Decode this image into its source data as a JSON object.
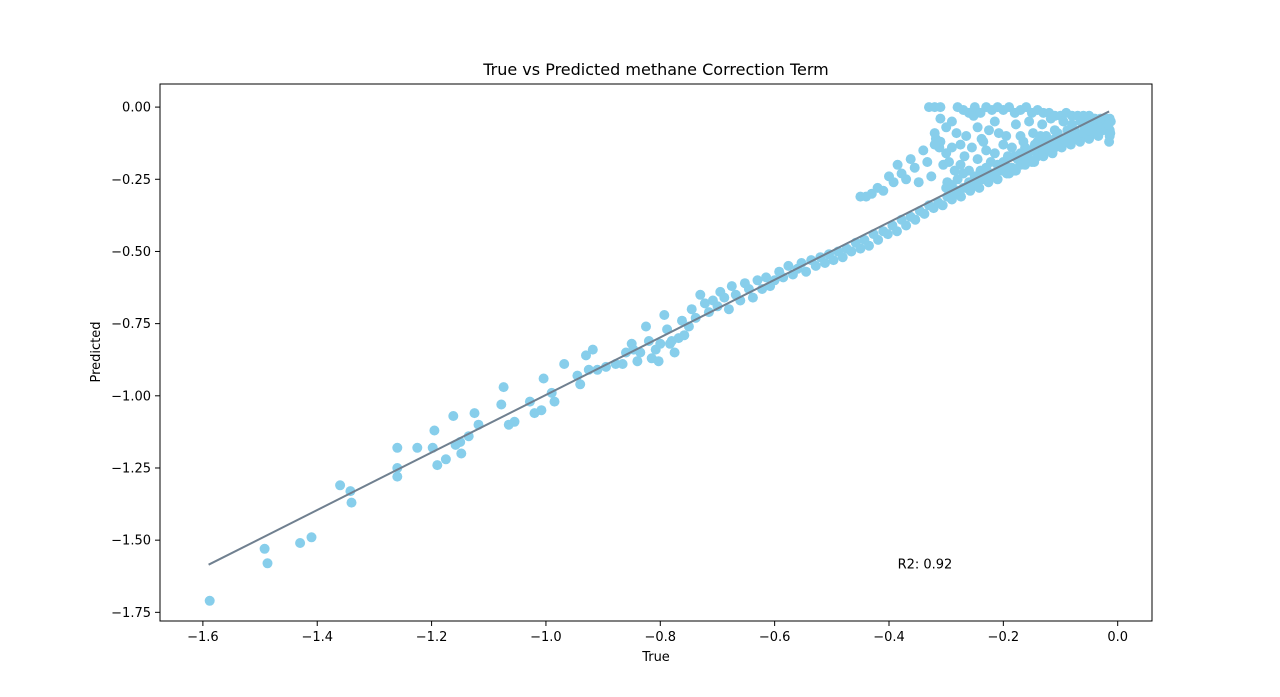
{
  "chart_data": {
    "type": "scatter",
    "title": "True vs Predicted methane Correction Term",
    "xlabel": "True",
    "ylabel": "Predicted",
    "xlim": [
      -1.675,
      0.06
    ],
    "ylim": [
      -1.78,
      0.08
    ],
    "xticks": [
      {
        "value": -1.6,
        "label": "−1.6"
      },
      {
        "value": -1.4,
        "label": "−1.4"
      },
      {
        "value": -1.2,
        "label": "−1.2"
      },
      {
        "value": -1.0,
        "label": "−1.0"
      },
      {
        "value": -0.8,
        "label": "−0.8"
      },
      {
        "value": -0.6,
        "label": "−0.6"
      },
      {
        "value": -0.4,
        "label": "−0.4"
      },
      {
        "value": -0.2,
        "label": "−0.2"
      },
      {
        "value": 0.0,
        "label": "0.0"
      }
    ],
    "yticks": [
      {
        "value": 0.0,
        "label": "0.00"
      },
      {
        "value": -0.25,
        "label": "−0.25"
      },
      {
        "value": -0.5,
        "label": "−0.50"
      },
      {
        "value": -0.75,
        "label": "−0.75"
      },
      {
        "value": -1.0,
        "label": "−1.00"
      },
      {
        "value": -1.25,
        "label": "−1.25"
      },
      {
        "value": -1.5,
        "label": "−1.50"
      },
      {
        "value": -1.75,
        "label": "−1.75"
      }
    ],
    "grid": false,
    "annotation": {
      "text": "R2: 0.92",
      "x": -0.385,
      "y": -1.58
    },
    "fit_line": {
      "x": [
        -1.59,
        -0.015
      ],
      "y": [
        -1.585,
        -0.015
      ],
      "color": "#708090"
    },
    "point_color": "#87ceeb",
    "points": [
      [
        -1.588,
        -1.71
      ],
      [
        -1.492,
        -1.53
      ],
      [
        -1.487,
        -1.58
      ],
      [
        -1.43,
        -1.51
      ],
      [
        -1.41,
        -1.49
      ],
      [
        -1.36,
        -1.31
      ],
      [
        -1.342,
        -1.33
      ],
      [
        -1.34,
        -1.37
      ],
      [
        -1.26,
        -1.18
      ],
      [
        -1.26,
        -1.25
      ],
      [
        -1.26,
        -1.28
      ],
      [
        -1.225,
        -1.18
      ],
      [
        -1.198,
        -1.18
      ],
      [
        -1.195,
        -1.12
      ],
      [
        -1.19,
        -1.24
      ],
      [
        -1.175,
        -1.22
      ],
      [
        -1.162,
        -1.07
      ],
      [
        -1.158,
        -1.17
      ],
      [
        -1.15,
        -1.16
      ],
      [
        -1.148,
        -1.2
      ],
      [
        -1.135,
        -1.14
      ],
      [
        -1.125,
        -1.06
      ],
      [
        -1.118,
        -1.1
      ],
      [
        -1.078,
        -1.03
      ],
      [
        -1.074,
        -0.97
      ],
      [
        -1.065,
        -1.1
      ],
      [
        -1.055,
        -1.09
      ],
      [
        -1.028,
        -1.02
      ],
      [
        -1.02,
        -1.06
      ],
      [
        -1.008,
        -1.05
      ],
      [
        -1.004,
        -0.94
      ],
      [
        -0.99,
        -0.99
      ],
      [
        -0.985,
        -1.02
      ],
      [
        -0.968,
        -0.89
      ],
      [
        -0.945,
        -0.93
      ],
      [
        -0.94,
        -0.96
      ],
      [
        -0.93,
        -0.86
      ],
      [
        -0.925,
        -0.91
      ],
      [
        -0.918,
        -0.84
      ],
      [
        -0.91,
        -0.91
      ],
      [
        -0.895,
        -0.9
      ],
      [
        -0.878,
        -0.89
      ],
      [
        -0.866,
        -0.89
      ],
      [
        -0.86,
        -0.85
      ],
      [
        -0.85,
        -0.82
      ],
      [
        -0.847,
        -0.84
      ],
      [
        -0.84,
        -0.88
      ],
      [
        -0.835,
        -0.85
      ],
      [
        -0.825,
        -0.76
      ],
      [
        -0.82,
        -0.81
      ],
      [
        -0.815,
        -0.87
      ],
      [
        -0.808,
        -0.84
      ],
      [
        -0.803,
        -0.88
      ],
      [
        -0.8,
        -0.82
      ],
      [
        -0.793,
        -0.72
      ],
      [
        -0.788,
        -0.77
      ],
      [
        -0.783,
        -0.82
      ],
      [
        -0.78,
        -0.81
      ],
      [
        -0.775,
        -0.85
      ],
      [
        -0.768,
        -0.8
      ],
      [
        -0.762,
        -0.74
      ],
      [
        -0.758,
        -0.79
      ],
      [
        -0.75,
        -0.76
      ],
      [
        -0.745,
        -0.7
      ],
      [
        -0.738,
        -0.73
      ],
      [
        -0.73,
        -0.65
      ],
      [
        -0.722,
        -0.68
      ],
      [
        -0.715,
        -0.71
      ],
      [
        -0.708,
        -0.67
      ],
      [
        -0.7,
        -0.69
      ],
      [
        -0.695,
        -0.64
      ],
      [
        -0.688,
        -0.66
      ],
      [
        -0.68,
        -0.7
      ],
      [
        -0.675,
        -0.62
      ],
      [
        -0.668,
        -0.65
      ],
      [
        -0.66,
        -0.67
      ],
      [
        -0.652,
        -0.61
      ],
      [
        -0.645,
        -0.63
      ],
      [
        -0.638,
        -0.66
      ],
      [
        -0.63,
        -0.6
      ],
      [
        -0.622,
        -0.63
      ],
      [
        -0.615,
        -0.59
      ],
      [
        -0.608,
        -0.62
      ],
      [
        -0.6,
        -0.6
      ],
      [
        -0.592,
        -0.57
      ],
      [
        -0.585,
        -0.59
      ],
      [
        -0.576,
        -0.55
      ],
      [
        -0.568,
        -0.58
      ],
      [
        -0.56,
        -0.56
      ],
      [
        -0.553,
        -0.54
      ],
      [
        -0.545,
        -0.57
      ],
      [
        -0.536,
        -0.53
      ],
      [
        -0.528,
        -0.55
      ],
      [
        -0.52,
        -0.52
      ],
      [
        -0.512,
        -0.54
      ],
      [
        -0.505,
        -0.51
      ],
      [
        -0.497,
        -0.53
      ],
      [
        -0.489,
        -0.5
      ],
      [
        -0.481,
        -0.52
      ],
      [
        -0.474,
        -0.49
      ],
      [
        -0.466,
        -0.5
      ],
      [
        -0.458,
        -0.47
      ],
      [
        -0.45,
        -0.49
      ],
      [
        -0.443,
        -0.46
      ],
      [
        -0.435,
        -0.48
      ],
      [
        -0.427,
        -0.44
      ],
      [
        -0.419,
        -0.46
      ],
      [
        -0.41,
        -0.43
      ],
      [
        -0.402,
        -0.44
      ],
      [
        -0.394,
        -0.41
      ],
      [
        -0.386,
        -0.43
      ],
      [
        -0.378,
        -0.39
      ],
      [
        -0.37,
        -0.41
      ],
      [
        -0.362,
        -0.38
      ],
      [
        -0.354,
        -0.39
      ],
      [
        -0.346,
        -0.36
      ],
      [
        -0.338,
        -0.37
      ],
      [
        -0.33,
        -0.34
      ],
      [
        -0.322,
        -0.35
      ],
      [
        -0.314,
        -0.33
      ],
      [
        -0.306,
        -0.34
      ],
      [
        -0.298,
        -0.31
      ],
      [
        -0.29,
        -0.32
      ],
      [
        -0.282,
        -0.3
      ],
      [
        -0.274,
        -0.31
      ],
      [
        -0.266,
        -0.28
      ],
      [
        -0.258,
        -0.29
      ],
      [
        -0.25,
        -0.27
      ],
      [
        -0.242,
        -0.28
      ],
      [
        -0.234,
        -0.25
      ],
      [
        -0.226,
        -0.26
      ],
      [
        -0.218,
        -0.24
      ],
      [
        -0.21,
        -0.25
      ],
      [
        -0.202,
        -0.22
      ],
      [
        -0.194,
        -0.23
      ],
      [
        -0.186,
        -0.21
      ],
      [
        -0.178,
        -0.22
      ],
      [
        -0.17,
        -0.19
      ],
      [
        -0.162,
        -0.2
      ],
      [
        -0.154,
        -0.18
      ],
      [
        -0.146,
        -0.19
      ],
      [
        -0.138,
        -0.16
      ],
      [
        -0.13,
        -0.17
      ],
      [
        -0.122,
        -0.15
      ],
      [
        -0.114,
        -0.16
      ],
      [
        -0.106,
        -0.13
      ],
      [
        -0.098,
        -0.14
      ],
      [
        -0.09,
        -0.12
      ],
      [
        -0.082,
        -0.13
      ],
      [
        -0.074,
        -0.11
      ],
      [
        -0.066,
        -0.12
      ],
      [
        -0.058,
        -0.1
      ],
      [
        -0.05,
        -0.11
      ],
      [
        -0.042,
        -0.09
      ],
      [
        -0.034,
        -0.1
      ],
      [
        -0.026,
        -0.08
      ],
      [
        -0.018,
        -0.07
      ],
      [
        -0.012,
        -0.05
      ],
      [
        -0.015,
        -0.12
      ],
      [
        -0.45,
        -0.31
      ],
      [
        -0.44,
        -0.31
      ],
      [
        -0.43,
        -0.3
      ],
      [
        -0.42,
        -0.28
      ],
      [
        -0.41,
        -0.29
      ],
      [
        -0.4,
        -0.24
      ],
      [
        -0.392,
        -0.26
      ],
      [
        -0.385,
        -0.2
      ],
      [
        -0.378,
        -0.23
      ],
      [
        -0.37,
        -0.25
      ],
      [
        -0.362,
        -0.18
      ],
      [
        -0.355,
        -0.21
      ],
      [
        -0.348,
        -0.26
      ],
      [
        -0.34,
        -0.15
      ],
      [
        -0.333,
        -0.19
      ],
      [
        -0.326,
        -0.24
      ],
      [
        -0.318,
        -0.11
      ],
      [
        -0.312,
        -0.14
      ],
      [
        -0.305,
        -0.2
      ],
      [
        -0.298,
        -0.26
      ],
      [
        -0.33,
        0.0
      ],
      [
        -0.32,
        0.0
      ],
      [
        -0.31,
        0.0
      ],
      [
        -0.29,
        -0.05
      ],
      [
        -0.282,
        -0.09
      ],
      [
        -0.275,
        -0.13
      ],
      [
        -0.268,
        -0.17
      ],
      [
        -0.26,
        -0.22
      ],
      [
        -0.252,
        -0.03
      ],
      [
        -0.245,
        -0.07
      ],
      [
        -0.238,
        -0.11
      ],
      [
        -0.23,
        -0.15
      ],
      [
        -0.222,
        -0.19
      ],
      [
        -0.28,
        0.0
      ],
      [
        -0.27,
        -0.01
      ],
      [
        -0.26,
        -0.02
      ],
      [
        -0.25,
        0.0
      ],
      [
        -0.24,
        -0.02
      ],
      [
        -0.23,
        0.0
      ],
      [
        -0.22,
        -0.01
      ],
      [
        -0.215,
        -0.05
      ],
      [
        -0.208,
        -0.09
      ],
      [
        -0.2,
        -0.13
      ],
      [
        -0.192,
        -0.17
      ],
      [
        -0.185,
        -0.21
      ],
      [
        -0.21,
        0.0
      ],
      [
        -0.2,
        -0.01
      ],
      [
        -0.19,
        0.0
      ],
      [
        -0.18,
        -0.02
      ],
      [
        -0.17,
        -0.01
      ],
      [
        -0.16,
        0.0
      ],
      [
        -0.15,
        -0.02
      ],
      [
        -0.14,
        -0.01
      ],
      [
        -0.13,
        -0.02
      ],
      [
        -0.12,
        -0.02
      ],
      [
        -0.11,
        -0.03
      ],
      [
        -0.1,
        -0.03
      ],
      [
        -0.09,
        -0.02
      ],
      [
        -0.08,
        -0.03
      ],
      [
        -0.07,
        -0.03
      ],
      [
        -0.06,
        -0.03
      ],
      [
        -0.05,
        -0.03
      ],
      [
        -0.04,
        -0.04
      ],
      [
        -0.03,
        -0.04
      ],
      [
        -0.02,
        -0.04
      ],
      [
        -0.178,
        -0.06
      ],
      [
        -0.17,
        -0.1
      ],
      [
        -0.162,
        -0.14
      ],
      [
        -0.155,
        -0.05
      ],
      [
        -0.148,
        -0.09
      ],
      [
        -0.14,
        -0.12
      ],
      [
        -0.132,
        -0.06
      ],
      [
        -0.125,
        -0.1
      ],
      [
        -0.117,
        -0.04
      ],
      [
        -0.11,
        -0.08
      ],
      [
        -0.102,
        -0.11
      ],
      [
        -0.095,
        -0.05
      ],
      [
        -0.088,
        -0.08
      ],
      [
        -0.08,
        -0.06
      ],
      [
        -0.072,
        -0.09
      ],
      [
        -0.065,
        -0.05
      ],
      [
        -0.058,
        -0.07
      ],
      [
        -0.05,
        -0.05
      ],
      [
        -0.042,
        -0.06
      ],
      [
        -0.035,
        -0.07
      ],
      [
        -0.028,
        -0.05
      ],
      [
        -0.02,
        -0.06
      ],
      [
        -0.014,
        -0.04
      ],
      [
        -0.014,
        -0.08
      ],
      [
        -0.014,
        -0.1
      ],
      [
        -0.265,
        -0.1
      ],
      [
        -0.255,
        -0.14
      ],
      [
        -0.245,
        -0.18
      ],
      [
        -0.235,
        -0.12
      ],
      [
        -0.225,
        -0.08
      ],
      [
        -0.215,
        -0.16
      ],
      [
        -0.205,
        -0.2
      ],
      [
        -0.195,
        -0.1
      ],
      [
        -0.185,
        -0.14
      ],
      [
        -0.175,
        -0.18
      ],
      [
        -0.165,
        -0.12
      ],
      [
        -0.155,
        -0.15
      ],
      [
        -0.145,
        -0.13
      ],
      [
        -0.135,
        -0.1
      ],
      [
        -0.125,
        -0.14
      ],
      [
        -0.115,
        -0.12
      ],
      [
        -0.105,
        -0.09
      ],
      [
        -0.095,
        -0.11
      ],
      [
        -0.085,
        -0.1
      ],
      [
        -0.075,
        -0.08
      ],
      [
        -0.3,
        -0.28
      ],
      [
        -0.29,
        -0.27
      ],
      [
        -0.28,
        -0.25
      ],
      [
        -0.27,
        -0.23
      ],
      [
        -0.26,
        -0.26
      ],
      [
        -0.25,
        -0.24
      ],
      [
        -0.24,
        -0.22
      ],
      [
        -0.23,
        -0.21
      ],
      [
        -0.22,
        -0.23
      ],
      [
        -0.21,
        -0.2
      ],
      [
        -0.2,
        -0.19
      ],
      [
        -0.19,
        -0.21
      ],
      [
        -0.18,
        -0.17
      ],
      [
        -0.17,
        -0.16
      ],
      [
        -0.16,
        -0.17
      ],
      [
        -0.15,
        -0.15
      ],
      [
        -0.14,
        -0.14
      ],
      [
        -0.13,
        -0.13
      ],
      [
        -0.12,
        -0.12
      ],
      [
        -0.11,
        -0.11
      ],
      [
        -0.29,
        -0.3
      ],
      [
        -0.28,
        -0.29
      ],
      [
        -0.27,
        -0.28
      ],
      [
        -0.26,
        -0.27
      ],
      [
        -0.25,
        -0.26
      ],
      [
        -0.24,
        -0.25
      ],
      [
        -0.23,
        -0.24
      ],
      [
        -0.22,
        -0.24
      ],
      [
        -0.21,
        -0.22
      ],
      [
        -0.2,
        -0.21
      ],
      [
        -0.19,
        -0.23
      ],
      [
        -0.18,
        -0.22
      ],
      [
        -0.17,
        -0.2
      ],
      [
        -0.16,
        -0.19
      ],
      [
        -0.15,
        -0.19
      ],
      [
        -0.14,
        -0.17
      ],
      [
        -0.13,
        -0.16
      ],
      [
        -0.12,
        -0.15
      ],
      [
        -0.11,
        -0.14
      ],
      [
        -0.1,
        -0.13
      ],
      [
        -0.09,
        -0.12
      ],
      [
        -0.08,
        -0.11
      ],
      [
        -0.07,
        -0.1
      ],
      [
        -0.06,
        -0.09
      ],
      [
        -0.05,
        -0.08
      ],
      [
        -0.04,
        -0.08
      ],
      [
        -0.03,
        -0.07
      ],
      [
        -0.02,
        -0.07
      ],
      [
        -0.016,
        -0.06
      ],
      [
        -0.013,
        -0.09
      ],
      [
        -0.32,
        -0.09
      ],
      [
        -0.31,
        -0.12
      ],
      [
        -0.3,
        -0.16
      ],
      [
        -0.295,
        -0.19
      ],
      [
        -0.285,
        -0.22
      ],
      [
        -0.275,
        -0.2
      ],
      [
        -0.29,
        -0.14
      ],
      [
        -0.3,
        -0.07
      ],
      [
        -0.31,
        -0.04
      ],
      [
        -0.32,
        -0.13
      ]
    ]
  }
}
